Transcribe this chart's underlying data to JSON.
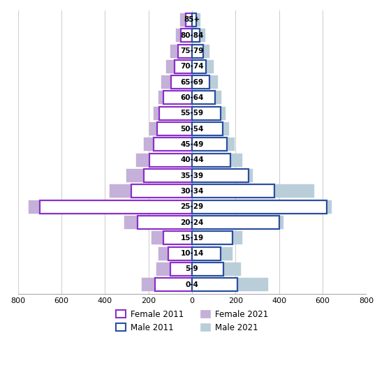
{
  "age_groups": [
    "0-4",
    "5-9",
    "10-14",
    "15-19",
    "20-24",
    "25-29",
    "30-34",
    "35-39",
    "40-44",
    "45-49",
    "50-54",
    "55-59",
    "60-64",
    "65-69",
    "70-74",
    "75-79",
    "80-84",
    "85+"
  ],
  "female_2021": [
    230,
    165,
    155,
    185,
    310,
    750,
    380,
    300,
    255,
    220,
    195,
    175,
    155,
    140,
    120,
    100,
    75,
    55
  ],
  "female_2011": [
    170,
    100,
    110,
    130,
    250,
    700,
    280,
    220,
    195,
    175,
    160,
    150,
    130,
    95,
    80,
    65,
    50,
    30
  ],
  "male_2021": [
    350,
    225,
    185,
    230,
    420,
    640,
    560,
    280,
    230,
    195,
    170,
    155,
    135,
    120,
    100,
    80,
    60,
    40
  ],
  "male_2011": [
    210,
    145,
    130,
    185,
    400,
    620,
    380,
    260,
    175,
    160,
    140,
    130,
    105,
    80,
    65,
    50,
    35,
    20
  ],
  "female_2011_facecolor": "#ffffff",
  "female_2011_edgecolor": "#8B2FC9",
  "female_2021_facecolor": "#C4B0D8",
  "female_2021_edgecolor": "#C4B0D8",
  "male_2011_facecolor": "#ffffff",
  "male_2011_edgecolor": "#2B4EA0",
  "male_2021_facecolor": "#BACED9",
  "male_2021_edgecolor": "#BACED9",
  "xlim": 800,
  "bar_height": 0.85,
  "grid_color": "#d0d0d0",
  "label_fontsize": 7.5,
  "tick_fontsize": 8
}
